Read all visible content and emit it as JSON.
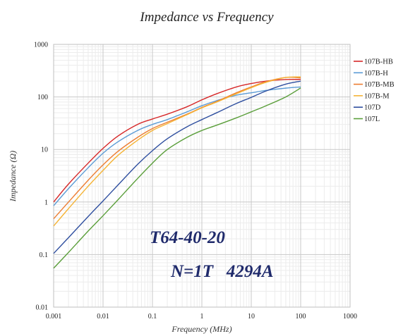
{
  "chart_data": {
    "type": "line",
    "title": "Impedance vs Frequency",
    "xlabel": "Frequency (MHz)",
    "ylabel": "Impedance (Ω)",
    "x_scale": "log",
    "y_scale": "log",
    "xlim": [
      0.001,
      1000
    ],
    "ylim": [
      0.01,
      1000
    ],
    "x_ticks": [
      "0.001",
      "0.01",
      "0.1",
      "1",
      "10",
      "100",
      "1000"
    ],
    "y_ticks": [
      "0.01",
      "0.1",
      "1",
      "10",
      "100",
      "1000"
    ],
    "grid": true,
    "legend_position": "right",
    "annotations": [
      "T64-40-20",
      "N=1T   4294A"
    ],
    "series": [
      {
        "name": "107B-HB",
        "color": "#d62728",
        "points": [
          [
            0.001,
            1.0
          ],
          [
            0.002,
            2.2
          ],
          [
            0.005,
            5.5
          ],
          [
            0.01,
            10.5
          ],
          [
            0.02,
            18
          ],
          [
            0.05,
            30
          ],
          [
            0.1,
            38
          ],
          [
            0.2,
            47
          ],
          [
            0.5,
            65
          ],
          [
            1,
            88
          ],
          [
            2,
            115
          ],
          [
            5,
            155
          ],
          [
            10,
            180
          ],
          [
            20,
            200
          ],
          [
            50,
            215
          ],
          [
            100,
            215
          ]
        ]
      },
      {
        "name": "107B-H",
        "color": "#5b9bd5",
        "points": [
          [
            0.001,
            0.85
          ],
          [
            0.002,
            1.8
          ],
          [
            0.005,
            4.5
          ],
          [
            0.01,
            8.5
          ],
          [
            0.02,
            14
          ],
          [
            0.05,
            23
          ],
          [
            0.1,
            30
          ],
          [
            0.2,
            37
          ],
          [
            0.5,
            52
          ],
          [
            1,
            68
          ],
          [
            2,
            85
          ],
          [
            5,
            108
          ],
          [
            10,
            120
          ],
          [
            20,
            133
          ],
          [
            50,
            147
          ],
          [
            100,
            155
          ]
        ]
      },
      {
        "name": "107B-MB",
        "color": "#ed7d31",
        "points": [
          [
            0.001,
            0.48
          ],
          [
            0.002,
            1.0
          ],
          [
            0.005,
            2.6
          ],
          [
            0.01,
            5.1
          ],
          [
            0.02,
            9.2
          ],
          [
            0.05,
            17
          ],
          [
            0.1,
            25
          ],
          [
            0.2,
            33
          ],
          [
            0.5,
            47
          ],
          [
            1,
            63
          ],
          [
            2,
            82
          ],
          [
            5,
            120
          ],
          [
            10,
            155
          ],
          [
            20,
            195
          ],
          [
            50,
            235
          ],
          [
            100,
            230
          ]
        ]
      },
      {
        "name": "107B-M",
        "color": "#f5b335",
        "points": [
          [
            0.001,
            0.35
          ],
          [
            0.002,
            0.75
          ],
          [
            0.005,
            2.0
          ],
          [
            0.01,
            4.0
          ],
          [
            0.02,
            7.7
          ],
          [
            0.05,
            15
          ],
          [
            0.1,
            23
          ],
          [
            0.2,
            31
          ],
          [
            0.5,
            46
          ],
          [
            1,
            62
          ],
          [
            2,
            80
          ],
          [
            5,
            115
          ],
          [
            10,
            150
          ],
          [
            20,
            190
          ],
          [
            50,
            235
          ],
          [
            100,
            240
          ]
        ]
      },
      {
        "name": "107D",
        "color": "#2f4f9f",
        "points": [
          [
            0.001,
            0.105
          ],
          [
            0.002,
            0.21
          ],
          [
            0.005,
            0.53
          ],
          [
            0.01,
            1.05
          ],
          [
            0.02,
            2.1
          ],
          [
            0.05,
            5.2
          ],
          [
            0.1,
            9.5
          ],
          [
            0.2,
            16
          ],
          [
            0.5,
            27
          ],
          [
            1,
            37
          ],
          [
            2,
            50
          ],
          [
            5,
            75
          ],
          [
            10,
            98
          ],
          [
            20,
            130
          ],
          [
            50,
            175
          ],
          [
            100,
            200
          ]
        ]
      },
      {
        "name": "107L",
        "color": "#5a9e3a",
        "points": [
          [
            0.001,
            0.055
          ],
          [
            0.002,
            0.11
          ],
          [
            0.005,
            0.28
          ],
          [
            0.01,
            0.55
          ],
          [
            0.02,
            1.1
          ],
          [
            0.05,
            2.8
          ],
          [
            0.1,
            5.5
          ],
          [
            0.2,
            10
          ],
          [
            0.5,
            17
          ],
          [
            1,
            23
          ],
          [
            2,
            29
          ],
          [
            5,
            40
          ],
          [
            10,
            52
          ],
          [
            20,
            68
          ],
          [
            50,
            100
          ],
          [
            100,
            148
          ]
        ]
      }
    ]
  }
}
